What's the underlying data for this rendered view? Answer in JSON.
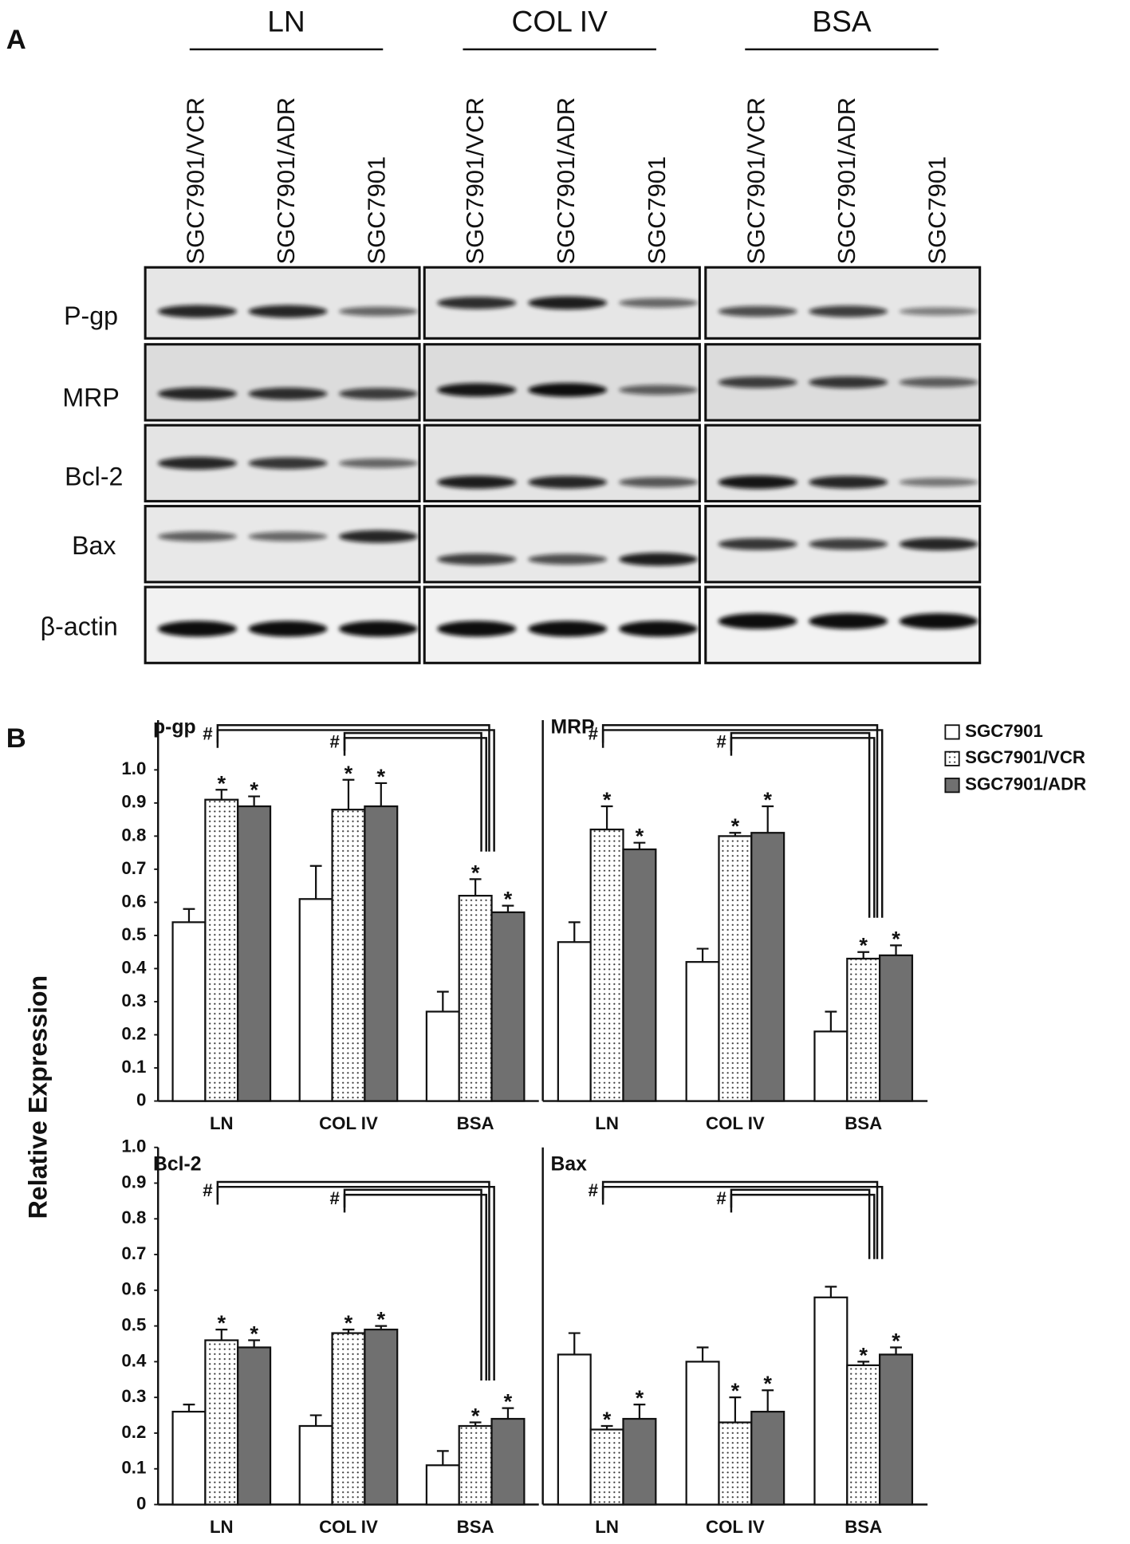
{
  "panel_a": {
    "label": "A",
    "groups": [
      {
        "name": "LN",
        "lanes": [
          "SGC7901/VCR",
          "SGC7901/ADR",
          "SGC7901"
        ]
      },
      {
        "name": "COL IV",
        "lanes": [
          "SGC7901/VCR",
          "SGC7901/ADR",
          "SGC7901"
        ]
      },
      {
        "name": "BSA",
        "lanes": [
          "SGC7901/VCR",
          "SGC7901/ADR",
          "SGC7901"
        ]
      }
    ],
    "proteins": [
      "P-gp",
      "MRP",
      "Bcl-2",
      "Bax",
      "β-actin"
    ]
  },
  "panel_b": {
    "label": "B",
    "ylabel": "Relative Expression"
  },
  "chart_data": [
    {
      "type": "bar",
      "title": "p-gp",
      "categories": [
        "LN",
        "COL IV",
        "BSA"
      ],
      "ylim": [
        0,
        1.15
      ],
      "yticks": [
        0,
        0.1,
        0.2,
        0.3,
        0.4,
        0.5,
        0.6,
        0.7,
        0.8,
        0.9,
        {
          "value": 1,
          "label": "1.0"
        }
      ],
      "brackets": [
        "#",
        "#"
      ],
      "series": [
        {
          "color": "#ffffff",
          "pattern": "none",
          "values": [
            0.54,
            0.61,
            0.27
          ],
          "errors": [
            0.04,
            0.1,
            0.06
          ]
        },
        {
          "color": "#ffffff",
          "pattern": "dots",
          "values": [
            0.91,
            0.88,
            0.62
          ],
          "errors": [
            0.03,
            0.09,
            0.05
          ],
          "markers": [
            "*",
            "*",
            "*"
          ]
        },
        {
          "color": "#707070",
          "pattern": "none",
          "values": [
            0.89,
            0.89,
            0.57
          ],
          "errors": [
            0.03,
            0.07,
            0.02
          ],
          "markers": [
            "*",
            "*",
            "*"
          ]
        }
      ]
    },
    {
      "type": "bar",
      "title": "MRP",
      "categories": [
        "LN",
        "COL IV",
        "BSA"
      ],
      "ylim": [
        0,
        1.15
      ],
      "brackets": [
        "#",
        "#"
      ],
      "legend": "right-outside",
      "series": [
        {
          "name": "SGC7901",
          "color": "#ffffff",
          "pattern": "none",
          "values": [
            0.48,
            0.42,
            0.21
          ],
          "errors": [
            0.06,
            0.04,
            0.06
          ]
        },
        {
          "name": "SGC7901/VCR",
          "color": "#ffffff",
          "pattern": "dots",
          "values": [
            0.82,
            0.8,
            0.43
          ],
          "errors": [
            0.07,
            0.01,
            0.02
          ],
          "markers": [
            "*",
            "*",
            "*"
          ]
        },
        {
          "name": "SGC7901/ADR",
          "color": "#707070",
          "pattern": "none",
          "values": [
            0.76,
            0.81,
            0.44
          ],
          "errors": [
            0.02,
            0.08,
            0.03
          ],
          "markers": [
            "*",
            "*",
            "*"
          ]
        }
      ]
    },
    {
      "type": "bar",
      "title": "Bcl-2",
      "categories": [
        "LN",
        "COL IV",
        "BSA"
      ],
      "ylim": [
        0,
        1
      ],
      "yticks": [
        0,
        0.1,
        0.2,
        0.3,
        0.4,
        0.5,
        0.6,
        0.7,
        0.8,
        0.9,
        {
          "value": 1,
          "label": "1.0"
        }
      ],
      "brackets": [
        "#",
        "#"
      ],
      "series": [
        {
          "color": "#ffffff",
          "pattern": "none",
          "values": [
            0.26,
            0.22,
            0.11
          ],
          "errors": [
            0.02,
            0.03,
            0.04
          ]
        },
        {
          "color": "#ffffff",
          "pattern": "dots",
          "values": [
            0.46,
            0.48,
            0.22
          ],
          "errors": [
            0.03,
            0.01,
            0.01
          ],
          "markers": [
            "*",
            "*",
            "*"
          ]
        },
        {
          "color": "#707070",
          "pattern": "none",
          "values": [
            0.44,
            0.49,
            0.24
          ],
          "errors": [
            0.02,
            0.01,
            0.03
          ],
          "markers": [
            "*",
            "*",
            "*"
          ]
        }
      ]
    },
    {
      "type": "bar",
      "title": "Bax",
      "categories": [
        "LN",
        "COL IV",
        "BSA"
      ],
      "ylim": [
        0,
        1
      ],
      "brackets": [
        "#",
        "#"
      ],
      "series": [
        {
          "color": "#ffffff",
          "pattern": "none",
          "values": [
            0.42,
            0.4,
            0.58
          ],
          "errors": [
            0.06,
            0.04,
            0.03
          ]
        },
        {
          "color": "#ffffff",
          "pattern": "dots",
          "values": [
            0.21,
            0.23,
            0.39
          ],
          "errors": [
            0.01,
            0.07,
            0.01
          ],
          "markers": [
            "*",
            "*",
            "*"
          ]
        },
        {
          "color": "#707070",
          "pattern": "none",
          "values": [
            0.24,
            0.26,
            0.42
          ],
          "errors": [
            0.04,
            0.06,
            0.02
          ],
          "markers": [
            "*",
            "*",
            "*"
          ]
        }
      ]
    }
  ]
}
